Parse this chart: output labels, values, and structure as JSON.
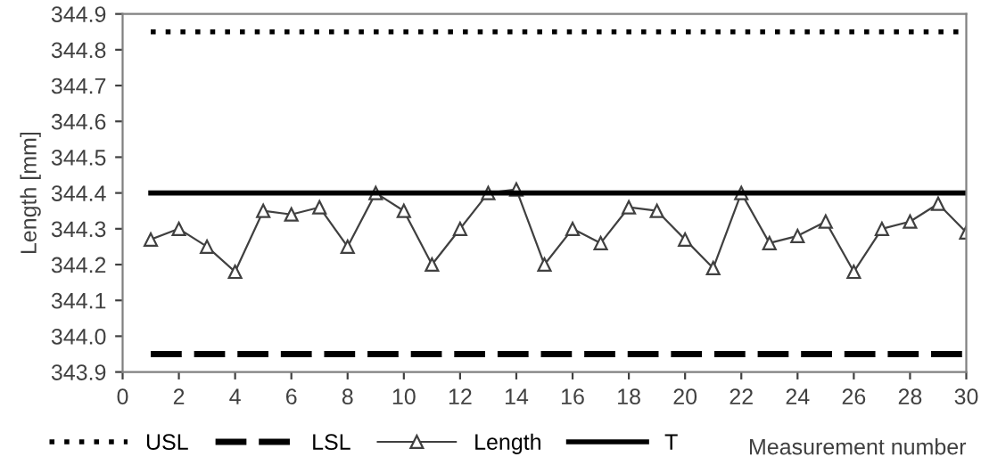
{
  "chart_data": {
    "type": "line",
    "ylabel": "Length [mm]",
    "xlabel": "Measurement number",
    "xlim": [
      0,
      30
    ],
    "xticks": [
      0,
      2,
      4,
      6,
      8,
      10,
      12,
      14,
      16,
      18,
      20,
      22,
      24,
      26,
      28,
      30
    ],
    "ylim": [
      343.9,
      344.9
    ],
    "yticks": [
      {
        "value": 343.9,
        "label": "343.9"
      },
      {
        "value": 344.0,
        "label": "344.0"
      },
      {
        "value": 344.1,
        "label": "344.1"
      },
      {
        "value": 344.2,
        "label": "344.2"
      },
      {
        "value": 344.3,
        "label": "344.3"
      },
      {
        "value": 344.4,
        "label": "344.4"
      },
      {
        "value": 344.5,
        "label": "344.5"
      },
      {
        "value": 344.6,
        "label": "344.6"
      },
      {
        "value": 344.7,
        "label": "344.7"
      },
      {
        "value": 344.8,
        "label": "344.8"
      },
      {
        "value": 344.9,
        "label": "344.9"
      }
    ],
    "grid": false,
    "legend": "bottom",
    "series": [
      {
        "name": "USL",
        "color": "#000000",
        "line_style": "dotted",
        "marker": "none",
        "x": [
          1,
          30
        ],
        "values": [
          344.85,
          344.85
        ]
      },
      {
        "name": "LSL",
        "color": "#000000",
        "line_style": "dashed",
        "marker": "none",
        "x": [
          1,
          30
        ],
        "values": [
          343.95,
          343.95
        ]
      },
      {
        "name": "Length",
        "color": "#404040",
        "line_style": "solid",
        "marker": "triangle",
        "x": [
          1,
          2,
          3,
          4,
          5,
          6,
          7,
          8,
          9,
          10,
          11,
          12,
          13,
          14,
          15,
          16,
          17,
          18,
          19,
          20,
          21,
          22,
          23,
          24,
          25,
          26,
          27,
          28,
          29,
          30
        ],
        "values": [
          344.27,
          344.3,
          344.25,
          344.18,
          344.35,
          344.34,
          344.36,
          344.25,
          344.4,
          344.35,
          344.2,
          344.3,
          344.4,
          344.41,
          344.2,
          344.3,
          344.26,
          344.36,
          344.35,
          344.27,
          344.19,
          344.4,
          344.26,
          344.28,
          344.32,
          344.18,
          344.3,
          344.32,
          344.37,
          344.29
        ]
      },
      {
        "name": "T",
        "color": "#000000",
        "line_style": "solid",
        "marker": "none",
        "x": [
          1,
          30
        ],
        "values": [
          344.4,
          344.4
        ]
      }
    ]
  }
}
